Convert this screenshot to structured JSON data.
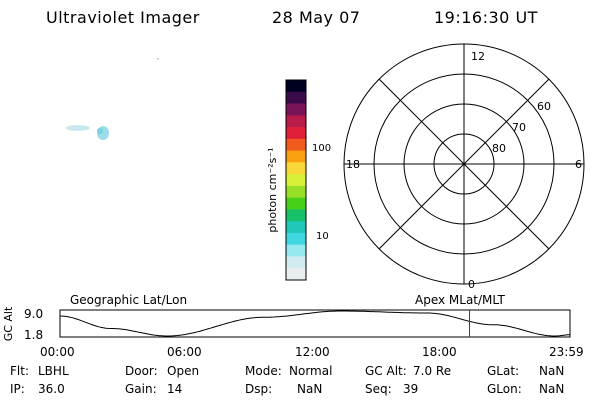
{
  "header": {
    "instrument": "Ultraviolet Imager",
    "date": "28 May 07",
    "time": "19:16:30 UT"
  },
  "colorbar": {
    "label": "photon cm⁻²s⁻¹",
    "ticks": [
      "100",
      "10"
    ],
    "colors": [
      "#000020",
      "#3a0a4a",
      "#7a1458",
      "#b81c4a",
      "#e0203a",
      "#f05a1c",
      "#f8a010",
      "#f8d838",
      "#d8f038",
      "#98e028",
      "#48d018",
      "#18c068",
      "#20c8b8",
      "#40d8e0",
      "#98e8f0",
      "#d0ecf0",
      "#e8eef0"
    ]
  },
  "polar_plot": {
    "mlt_labels": {
      "top": "12",
      "left": "18",
      "right": "6",
      "bottom": "0"
    },
    "lat_labels": [
      "60",
      "70",
      "80"
    ]
  },
  "timeline": {
    "ylabel": "GC Alt",
    "y_ticks": [
      "9.0",
      "1.8"
    ],
    "left_title": "Geographic Lat/Lon",
    "right_title": "Apex MLat/MLT",
    "x_ticks": [
      "00:00",
      "06:00",
      "12:00",
      "18:00",
      "23:59"
    ],
    "current_time_fraction": 0.803,
    "marker_color": "#d00000"
  },
  "info": {
    "flt_label": "Flt:",
    "flt_value": "LBHL",
    "ip_label": "IP:",
    "ip_value": "36.0",
    "door_label": "Door:",
    "door_value": "Open",
    "gain_label": "Gain:",
    "gain_value": "14",
    "mode_label": "Mode:",
    "mode_value": "Normal",
    "dsp_label": "Dsp:",
    "dsp_value": "NaN",
    "gcalt_label": "GC Alt:",
    "gcalt_value": "7.0 Re",
    "seq_label": "Seq:",
    "seq_value": "39",
    "glat_label": "GLat:",
    "glat_value": "NaN",
    "glon_label": "GLon:",
    "glon_value": "NaN"
  }
}
